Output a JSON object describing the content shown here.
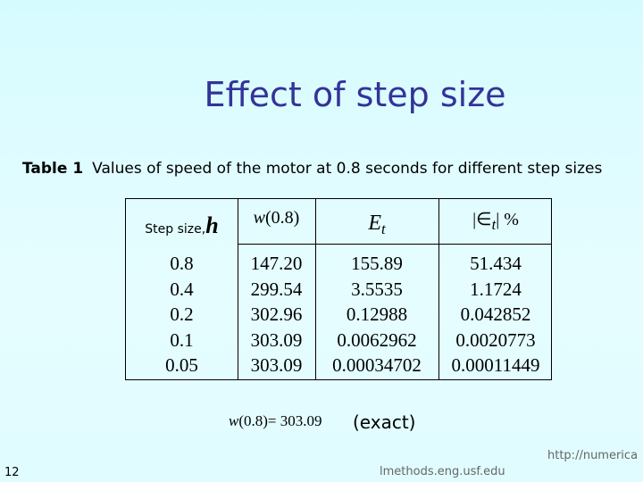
{
  "slide": {
    "title": "Effect of step size",
    "caption": {
      "label": "Table 1",
      "text": "Values of speed of the motor at 0.8 seconds for different step sizes"
    },
    "table": {
      "headers": [
        {
          "text": "Step size,",
          "symbol": "h"
        },
        {
          "symbol": "w",
          "text": "(0.8)"
        },
        {
          "symbol": "E",
          "sub": "t"
        },
        {
          "open": "|∈",
          "sub": "t",
          "close": "| %"
        }
      ],
      "rows": [
        [
          "0.8",
          "147.20",
          "155.89",
          "51.434"
        ],
        [
          "0.4",
          "299.54",
          "3.5535",
          "1.1724"
        ],
        [
          "0.2",
          "302.96",
          "0.12988",
          "0.042852"
        ],
        [
          "0.1",
          "303.09",
          "0.0062962",
          "0.0020773"
        ],
        [
          "0.05",
          "303.09",
          "0.00034702",
          "0.00011449"
        ]
      ]
    },
    "exact": {
      "symbol": "w",
      "formula": "(0.8)= 303.09",
      "note": "(exact)"
    },
    "footer": {
      "page": "12",
      "url_top": "http://numerica",
      "url_bottom": "lmethods.eng.usf.edu"
    }
  }
}
